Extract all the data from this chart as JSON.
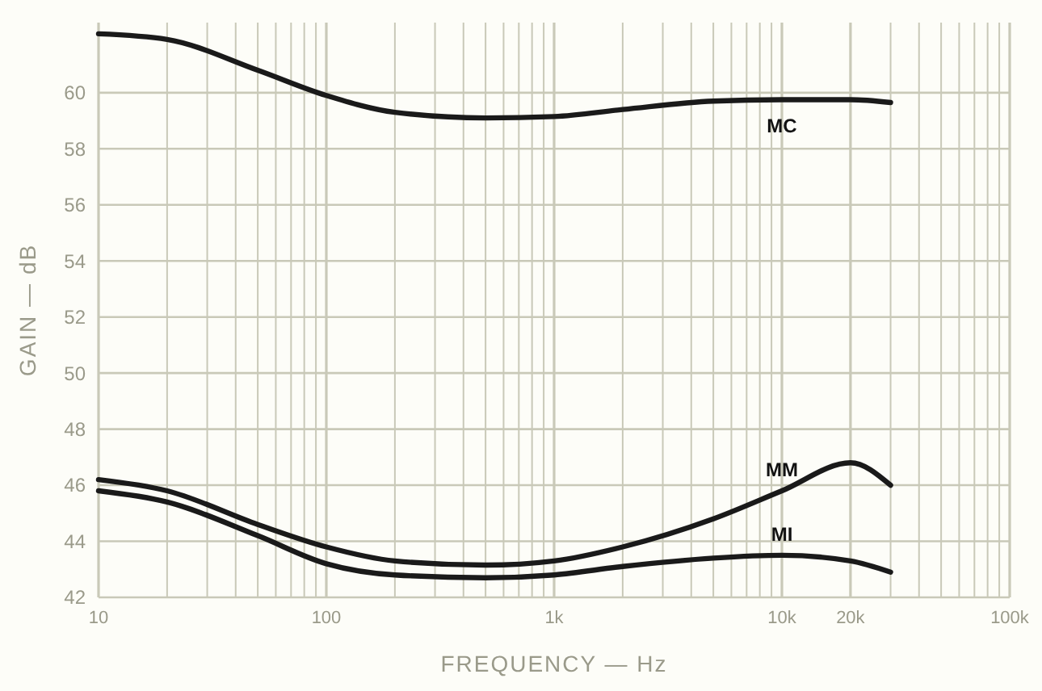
{
  "chart_data": {
    "type": "line",
    "xlabel": "FREQUENCY — Hz",
    "ylabel": "GAIN — dB",
    "log": "x",
    "grid": true,
    "line_style": "solid",
    "marker": "none",
    "xlim": [
      10,
      100000
    ],
    "ylim": [
      42,
      62.5
    ],
    "xticks": [
      10,
      {
        "value": 20,
        "label": null
      },
      {
        "value": 30,
        "label": null
      },
      {
        "value": 40,
        "label": null
      },
      {
        "value": 50,
        "label": null
      },
      {
        "value": 60,
        "label": null
      },
      {
        "value": 70,
        "label": null
      },
      {
        "value": 80,
        "label": null
      },
      {
        "value": 90,
        "label": null
      },
      {
        "value": 100,
        "label": "100"
      },
      {
        "value": 200,
        "label": null
      },
      {
        "value": 300,
        "label": null
      },
      {
        "value": 400,
        "label": null
      },
      {
        "value": 500,
        "label": null
      },
      {
        "value": 600,
        "label": null
      },
      {
        "value": 700,
        "label": null
      },
      {
        "value": 800,
        "label": null
      },
      {
        "value": 900,
        "label": null
      },
      {
        "value": 1000,
        "label": "1k"
      },
      {
        "value": 2000,
        "label": null
      },
      {
        "value": 3000,
        "label": null
      },
      {
        "value": 4000,
        "label": null
      },
      {
        "value": 5000,
        "label": null
      },
      {
        "value": 6000,
        "label": null
      },
      {
        "value": 7000,
        "label": null
      },
      {
        "value": 8000,
        "label": null
      },
      {
        "value": 9000,
        "label": null
      },
      {
        "value": 10000,
        "label": "10k"
      },
      {
        "value": 20000,
        "label": "20k"
      },
      {
        "value": 30000,
        "label": null
      },
      {
        "value": 40000,
        "label": null
      },
      {
        "value": 50000,
        "label": null
      },
      {
        "value": 60000,
        "label": null
      },
      {
        "value": 70000,
        "label": null
      },
      {
        "value": 80000,
        "label": null
      },
      {
        "value": 90000,
        "label": null
      },
      {
        "value": 100000,
        "label": "100k"
      }
    ],
    "yticks": [
      42,
      44,
      46,
      48,
      50,
      52,
      54,
      56,
      58,
      60
    ],
    "x": [
      10,
      20,
      50,
      100,
      200,
      500,
      1000,
      2000,
      5000,
      10000,
      20000,
      30000
    ],
    "series": [
      {
        "name": "MC",
        "color": "#1a1a1a",
        "values": [
          62.1,
          61.9,
          60.8,
          59.9,
          59.3,
          59.1,
          59.15,
          59.4,
          59.7,
          59.75,
          59.75,
          59.65
        ]
      },
      {
        "name": "MM",
        "color": "#1a1a1a",
        "values": [
          46.2,
          45.8,
          44.6,
          43.8,
          43.3,
          43.15,
          43.3,
          43.8,
          44.8,
          45.8,
          46.8,
          46.0
        ]
      },
      {
        "name": "MI",
        "color": "#1a1a1a",
        "values": [
          45.8,
          45.4,
          44.2,
          43.2,
          42.8,
          42.7,
          42.8,
          43.1,
          43.4,
          43.5,
          43.3,
          42.9
        ]
      }
    ]
  }
}
